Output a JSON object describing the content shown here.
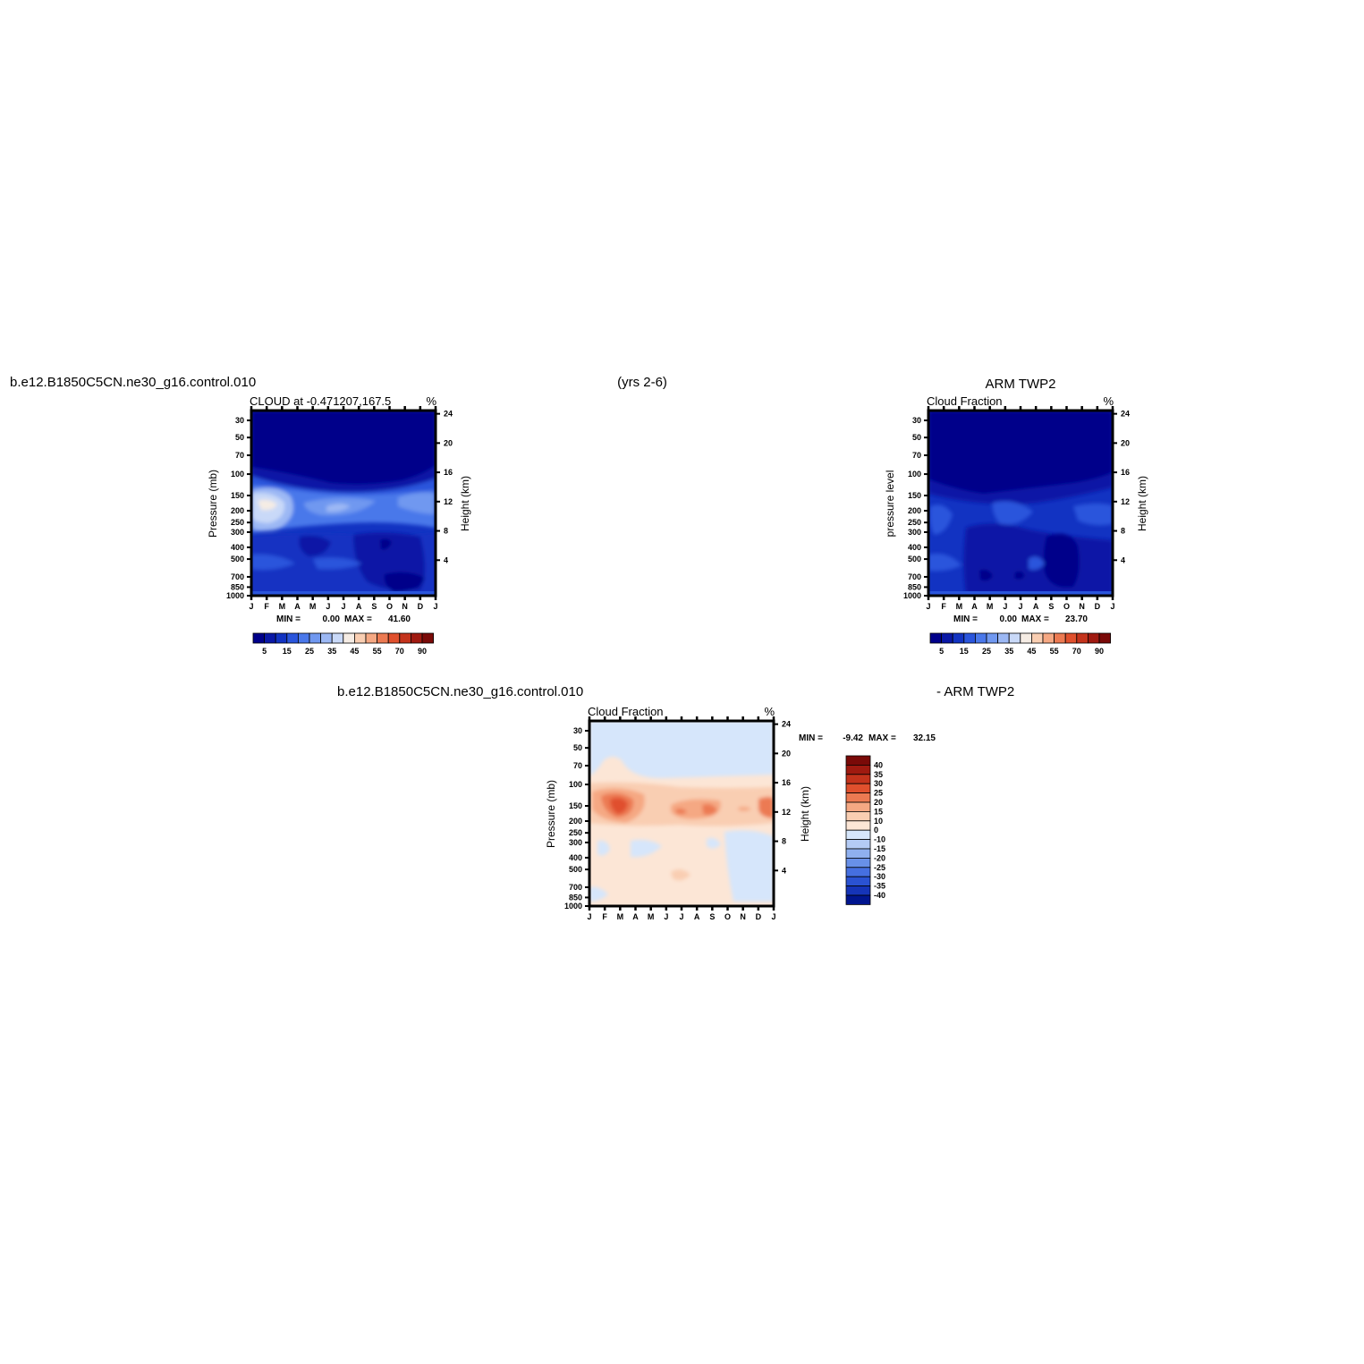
{
  "header": {
    "case_name": "b.e12.B1850C5CN.ne30_g16.control.010",
    "years": "(yrs 2-6)",
    "obs_name": "ARM  TWP2",
    "diff_case": "b.e12.B1850C5CN.ne30_g16.control.010",
    "diff_obs": "- ARM  TWP2"
  },
  "colors": {
    "cloud_levels": [
      "#00008a",
      "#0a18a6",
      "#1233c2",
      "#2a55dc",
      "#4a78ea",
      "#7098f0",
      "#9cb8f4",
      "#c9d9f8",
      "#f5ece4",
      "#f9ceb2",
      "#f5a883",
      "#ec7a52",
      "#e0502d",
      "#c4331c",
      "#a01a10",
      "#7a0a08"
    ],
    "diff_levels": [
      "#7a0a08",
      "#a01a10",
      "#c4331c",
      "#e0502d",
      "#ec7a52",
      "#f5a883",
      "#f9ceb2",
      "#fce6d6",
      "#d6e6fb",
      "#b4cbf5",
      "#8fb0ef",
      "#6890e8",
      "#456fe0",
      "#2a52d2",
      "#1534b8",
      "#00158f"
    ]
  },
  "chart_data": [
    {
      "id": "model",
      "type": "contour",
      "title_left": "CLOUD  at  -0.471207,167.5",
      "title_right": "%",
      "ylabel": "Pressure  (mb)",
      "ylabel_right": "Height  (km)",
      "x_ticks": [
        "J",
        "F",
        "M",
        "A",
        "M",
        "J",
        "J",
        "A",
        "S",
        "O",
        "N",
        "D",
        "J"
      ],
      "y_ticks": [
        "30",
        "50",
        "70",
        "100",
        "150",
        "200",
        "250",
        "300",
        "400",
        "500",
        "700",
        "850",
        "1000"
      ],
      "y_ticks_right": [
        "24",
        "20",
        "16",
        "12",
        "8",
        "4"
      ],
      "min_label": "MIN =",
      "min_value": "0.00",
      "max_label": "MAX =",
      "max_value": "41.60",
      "colorbar_labels": [
        "5",
        "15",
        "25",
        "35",
        "45",
        "55",
        "70",
        "90"
      ]
    },
    {
      "id": "obs",
      "type": "contour",
      "title_left": "Cloud  Fraction",
      "title_right": "%",
      "ylabel": "pressure  level",
      "ylabel_right": "Height  (km)",
      "x_ticks": [
        "J",
        "F",
        "M",
        "A",
        "M",
        "J",
        "J",
        "A",
        "S",
        "O",
        "N",
        "D",
        "J"
      ],
      "y_ticks": [
        "30",
        "50",
        "70",
        "100",
        "150",
        "200",
        "250",
        "300",
        "400",
        "500",
        "700",
        "850",
        "1000"
      ],
      "y_ticks_right": [
        "24",
        "20",
        "16",
        "12",
        "8",
        "4"
      ],
      "min_label": "MIN =",
      "min_value": "0.00",
      "max_label": "MAX =",
      "max_value": "23.70",
      "colorbar_labels": [
        "5",
        "15",
        "25",
        "35",
        "45",
        "55",
        "70",
        "90"
      ]
    },
    {
      "id": "diff",
      "type": "contour",
      "title_left": "Cloud  Fraction",
      "title_right": "%",
      "ylabel": "Pressure  (mb)",
      "ylabel_right": "Height  (km)",
      "x_ticks": [
        "J",
        "F",
        "M",
        "A",
        "M",
        "J",
        "J",
        "A",
        "S",
        "O",
        "N",
        "D",
        "J"
      ],
      "y_ticks": [
        "30",
        "50",
        "70",
        "100",
        "150",
        "200",
        "250",
        "300",
        "400",
        "500",
        "700",
        "850",
        "1000"
      ],
      "y_ticks_right": [
        "24",
        "20",
        "16",
        "12",
        "8",
        "4"
      ],
      "min_label": "MIN =",
      "min_value": "-9.42",
      "max_label": "MAX =",
      "max_value": "32.15",
      "colorbar_labels": [
        "40",
        "35",
        "30",
        "25",
        "20",
        "15",
        "10",
        "0",
        "-10",
        "-15",
        "-20",
        "-25",
        "-30",
        "-35",
        "-40"
      ]
    }
  ]
}
